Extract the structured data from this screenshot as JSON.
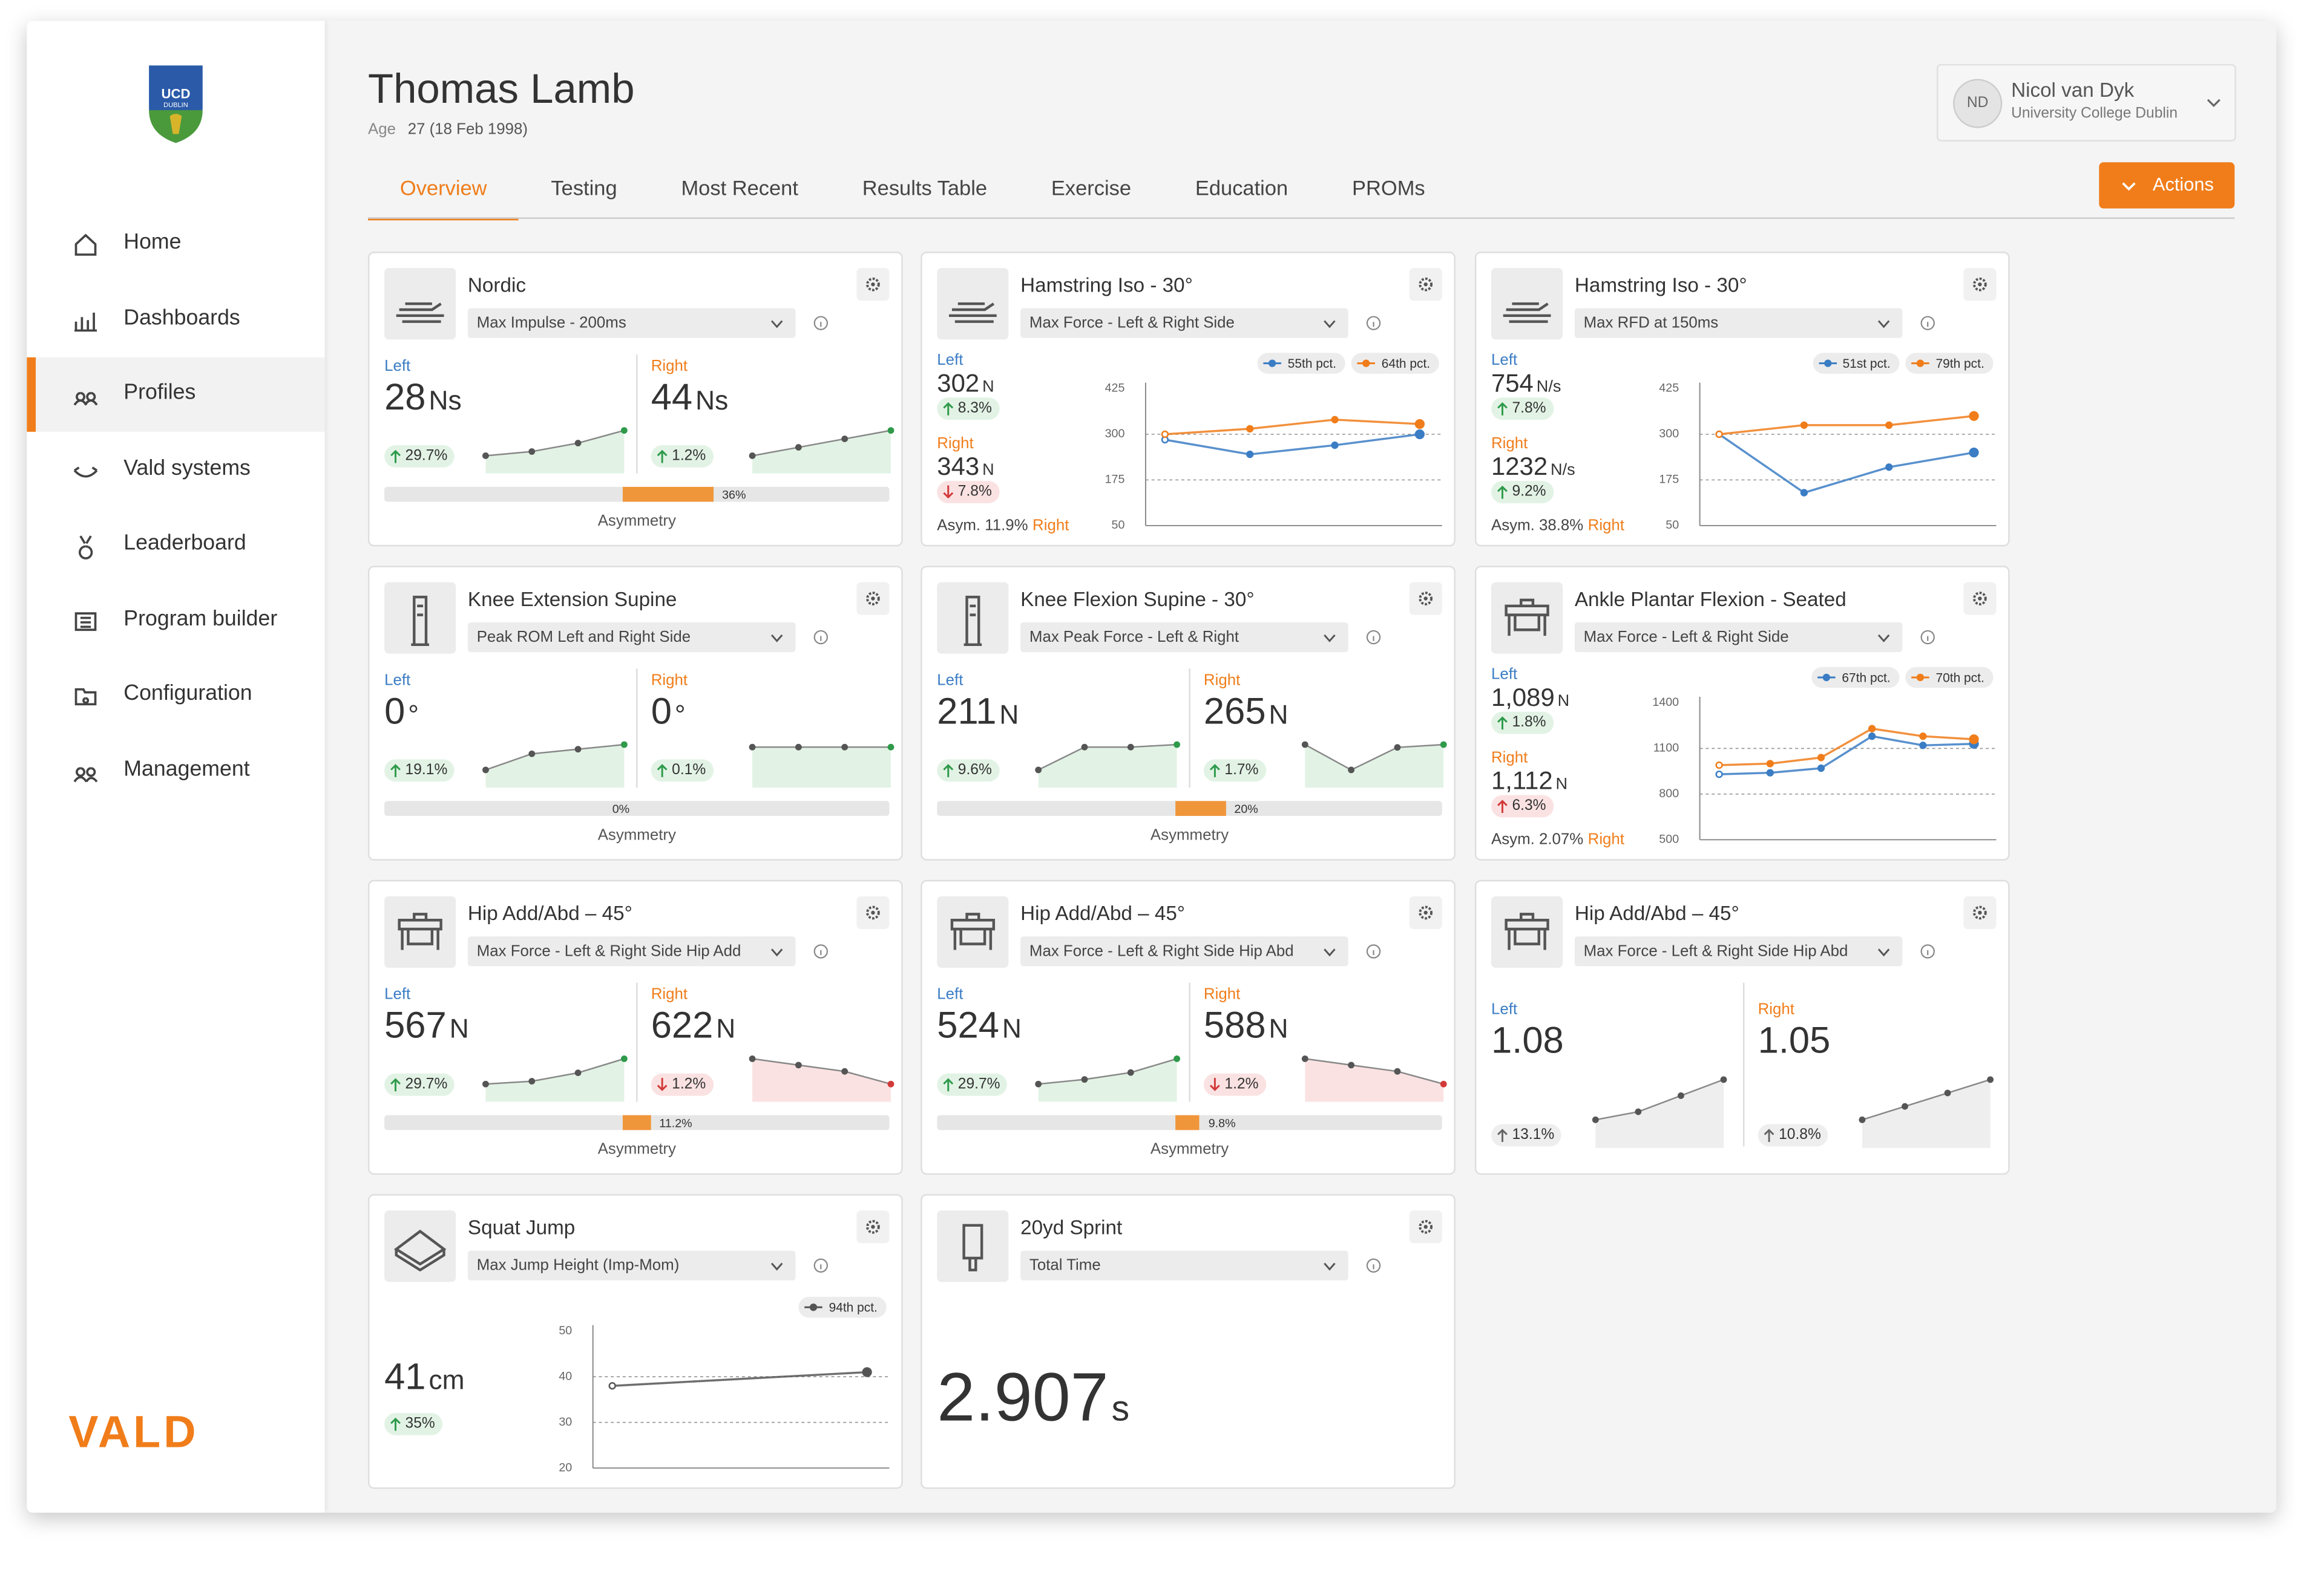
{
  "sidebar": {
    "logo_lines": [
      "UCD",
      "DUBLIN"
    ],
    "nav": [
      {
        "label": "Home"
      },
      {
        "label": "Dashboards"
      },
      {
        "label": "Profiles",
        "active": true
      },
      {
        "label": "Vald systems"
      },
      {
        "label": "Leaderboard"
      },
      {
        "label": "Program builder"
      },
      {
        "label": "Configuration"
      },
      {
        "label": "Management"
      }
    ],
    "brand": "VALD"
  },
  "header": {
    "name": "Thomas Lamb",
    "age_label": "Age",
    "age": "27 (18 Feb 1998)"
  },
  "user": {
    "initials": "ND",
    "name": "Nicol van Dyk",
    "org": "University College Dublin"
  },
  "tabs": [
    {
      "label": "Overview",
      "active": true
    },
    {
      "label": "Testing"
    },
    {
      "label": "Most Recent"
    },
    {
      "label": "Results Table"
    },
    {
      "label": "Exercise"
    },
    {
      "label": "Education"
    },
    {
      "label": "PROMs"
    }
  ],
  "actions": "Actions",
  "cards": [
    {
      "kind": "split",
      "icon": "sled",
      "title": "Nordic",
      "metric": "Max Impulse - 200ms",
      "sides": [
        {
          "label": "Left",
          "value": "28",
          "unit": "Ns",
          "change": "29.7%",
          "direction": "up",
          "tone": "good",
          "trend": [
            10,
            12,
            16,
            22
          ]
        },
        {
          "label": "Right",
          "value": "44",
          "unit": "Ns",
          "change": "1.2%",
          "direction": "up",
          "tone": "good",
          "trend": [
            10,
            11,
            12,
            13
          ]
        }
      ],
      "asymmetry": {
        "label": "Asymmetry",
        "value": 36,
        "value_label": "36%"
      }
    },
    {
      "kind": "trend",
      "icon": "sled",
      "title": "Hamstring Iso - 30°",
      "metric": "Max Force - Left & Right Side",
      "sides": [
        {
          "label": "Left",
          "value": "302",
          "unit": "N",
          "change": "8.3%",
          "direction": "up",
          "tone": "good",
          "percentile": "55th pct.",
          "color": "#3b7dc4",
          "values": [
            285,
            245,
            270,
            300
          ]
        },
        {
          "label": "Right",
          "value": "343",
          "unit": "N",
          "change": "7.8%",
          "direction": "down",
          "tone": "bad",
          "percentile": "64th pct.",
          "color": "#f07d1a",
          "values": [
            300,
            315,
            340,
            328
          ]
        }
      ],
      "asym": "Asym. 11.9%",
      "asym_side": "Right",
      "ylim": [
        50,
        425
      ],
      "yticks": [
        50,
        175,
        300,
        425
      ]
    },
    {
      "kind": "trend",
      "icon": "sled",
      "title": "Hamstring Iso - 30°",
      "metric": "Max RFD at 150ms",
      "sides": [
        {
          "label": "Left",
          "value": "754",
          "unit": "N/s",
          "change": "7.8%",
          "direction": "up",
          "tone": "good",
          "percentile": "51st pct.",
          "color": "#3b7dc4",
          "values": [
            300,
            140,
            210,
            250
          ]
        },
        {
          "label": "Right",
          "value": "1232",
          "unit": "N/s",
          "change": "9.2%",
          "direction": "up",
          "tone": "good",
          "percentile": "79th pct.",
          "color": "#f07d1a",
          "values": [
            300,
            325,
            325,
            350
          ]
        }
      ],
      "asym": "Asym. 38.8%",
      "asym_side": "Right",
      "ylim": [
        50,
        425
      ],
      "yticks": [
        50,
        175,
        300,
        425
      ]
    },
    {
      "kind": "split",
      "icon": "post",
      "title": "Knee Extension Supine",
      "metric": "Peak ROM Left and Right Side",
      "sides": [
        {
          "label": "Left",
          "value": "0",
          "unit": "°",
          "change": "19.1%",
          "direction": "up",
          "tone": "good",
          "trend": [
            5,
            12,
            14,
            16
          ]
        },
        {
          "label": "Right",
          "value": "0",
          "unit": "°",
          "change": "0.1%",
          "direction": "up",
          "tone": "good",
          "trend": [
            10,
            10,
            10,
            10
          ]
        }
      ],
      "asymmetry": {
        "label": "Asymmetry",
        "value": 0,
        "value_label": "0%"
      }
    },
    {
      "kind": "split",
      "icon": "post",
      "title": "Knee Flexion Supine - 30°",
      "metric": "Max Peak Force - Left & Right",
      "sides": [
        {
          "label": "Left",
          "value": "211",
          "unit": "N",
          "change": "9.6%",
          "direction": "up",
          "tone": "good",
          "trend": [
            5,
            14,
            14,
            15
          ]
        },
        {
          "label": "Right",
          "value": "265",
          "unit": "N",
          "change": "1.7%",
          "direction": "up",
          "tone": "good",
          "trend": [
            15,
            6,
            14,
            15
          ]
        }
      ],
      "asymmetry": {
        "label": "Asymmetry",
        "value": 20,
        "value_label": "20%"
      }
    },
    {
      "kind": "trend",
      "icon": "frame",
      "title": "Ankle Plantar Flexion - Seated",
      "metric": "Max Force - Left & Right Side",
      "sides": [
        {
          "label": "Left",
          "value": "1,089",
          "unit": "N",
          "change": "1.8%",
          "direction": "up",
          "tone": "good",
          "percentile": "67th pct.",
          "color": "#3b7dc4",
          "values": [
            930,
            940,
            970,
            1180,
            1120,
            1130
          ]
        },
        {
          "label": "Right",
          "value": "1,112",
          "unit": "N",
          "change": "6.3%",
          "direction": "up",
          "tone": "bad",
          "percentile": "70th pct.",
          "color": "#f07d1a",
          "values": [
            990,
            1000,
            1040,
            1230,
            1180,
            1160
          ]
        }
      ],
      "asym": "Asym. 2.07%",
      "asym_side": "Right",
      "ylim": [
        500,
        1400
      ],
      "yticks": [
        500,
        800,
        1100,
        1400
      ]
    },
    {
      "kind": "split",
      "icon": "frame",
      "title": "Hip Add/Abd – 45°",
      "metric": "Max Force - Left & Right Side Hip Add",
      "sides": [
        {
          "label": "Left",
          "value": "567",
          "unit": "N",
          "change": "29.7%",
          "direction": "up",
          "tone": "good",
          "trend": [
            10,
            11,
            14,
            19
          ]
        },
        {
          "label": "Right",
          "value": "622",
          "unit": "N",
          "change": "1.2%",
          "direction": "down",
          "tone": "bad",
          "trend": [
            16,
            15,
            14,
            12
          ]
        }
      ],
      "asymmetry": {
        "label": "Asymmetry",
        "value": 11.2,
        "value_label": "11.2%"
      }
    },
    {
      "kind": "split",
      "icon": "frame",
      "title": "Hip Add/Abd – 45°",
      "metric": "Max Force - Left & Right Side Hip Abd",
      "sides": [
        {
          "label": "Left",
          "value": "524",
          "unit": "N",
          "change": "29.7%",
          "direction": "up",
          "tone": "good",
          "trend": [
            10,
            12,
            15,
            21
          ]
        },
        {
          "label": "Right",
          "value": "588",
          "unit": "N",
          "change": "1.2%",
          "direction": "down",
          "tone": "bad",
          "trend": [
            17,
            16,
            15,
            13
          ]
        }
      ],
      "asymmetry": {
        "label": "Asymmetry",
        "value": 9.8,
        "value_label": "9.8%"
      }
    },
    {
      "kind": "split",
      "icon": "frame",
      "title": "Hip Add/Abd – 45°",
      "metric": "Max Force - Left & Right Side Hip Abd",
      "sides": [
        {
          "label": "Left",
          "value": "1.08",
          "change": "13.1%",
          "direction": "up",
          "tone": "neutral",
          "trend": [
            10,
            12,
            16,
            20
          ]
        },
        {
          "label": "Right",
          "value": "1.05",
          "change": "10.8%",
          "direction": "up",
          "tone": "neutral",
          "trend": [
            10,
            11,
            12,
            13
          ]
        }
      ]
    },
    {
      "kind": "single",
      "icon": "plate",
      "title": "Squat Jump",
      "metric": "Max Jump Height (Imp-Mom)",
      "value": "41",
      "unit": "cm",
      "change": "35%",
      "direction": "up",
      "tone": "good",
      "percentile": "94th pct.",
      "values": [
        38,
        41
      ],
      "ylim": [
        20,
        50
      ],
      "yticks": [
        20,
        30,
        40,
        50
      ]
    },
    {
      "kind": "big",
      "icon": "timer",
      "title": "20yd Sprint",
      "metric": "Total Time",
      "value": "2.907",
      "unit": "s"
    }
  ]
}
